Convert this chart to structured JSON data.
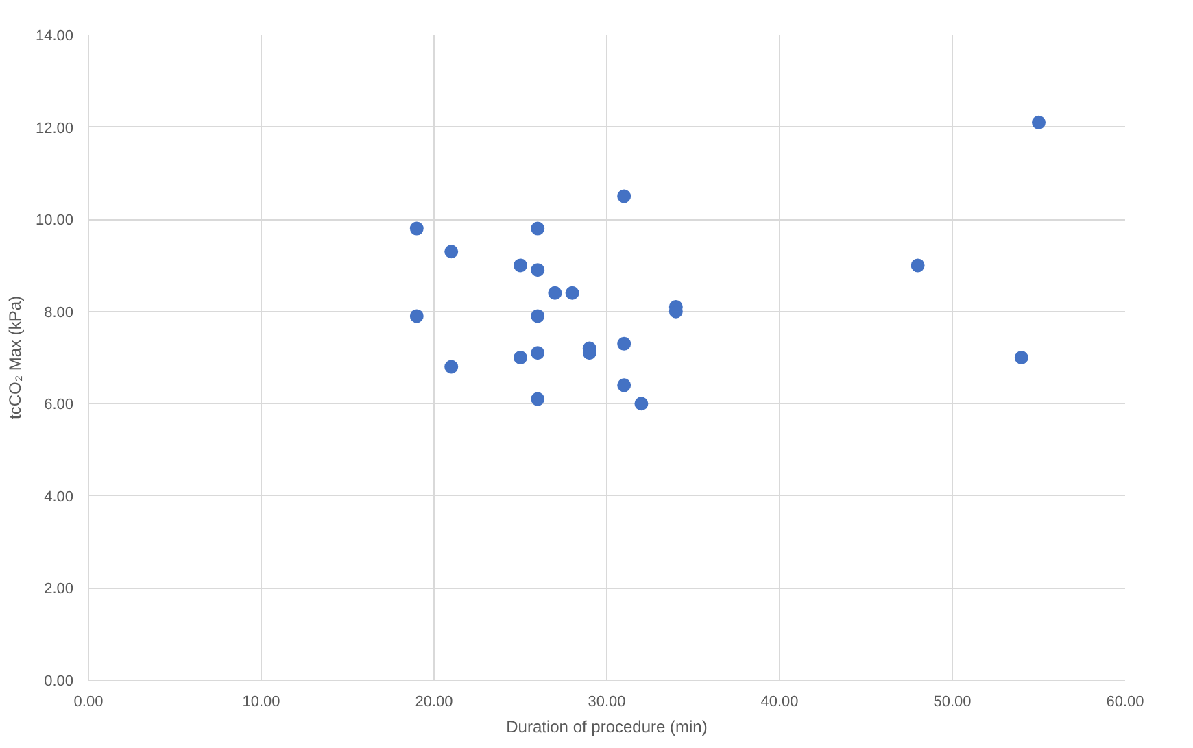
{
  "chart_data": {
    "type": "scatter",
    "xlabel": "Duration of procedure (min)",
    "ylabel": "tcCO₂ Max (kPa)",
    "x": [
      19,
      19,
      21,
      21,
      25,
      25,
      26,
      26,
      26,
      26,
      26,
      27,
      28,
      29,
      29,
      31,
      31,
      31,
      32,
      34,
      34,
      48,
      54,
      55
    ],
    "series": [
      {
        "color": "#4472c4",
        "values": [
          9.8,
          7.9,
          9.3,
          6.8,
          9.0,
          7.0,
          9.8,
          8.9,
          7.9,
          7.1,
          6.1,
          8.4,
          8.4,
          7.2,
          7.1,
          10.5,
          7.3,
          6.4,
          6.0,
          8.1,
          8.0,
          9.0,
          7.0,
          12.1
        ]
      }
    ],
    "xlim": [
      0,
      60
    ],
    "ylim": [
      0,
      14
    ],
    "xticks": [
      {
        "value": 0,
        "label": "0.00"
      },
      {
        "value": 10,
        "label": "10.00"
      },
      {
        "value": 20,
        "label": "20.00"
      },
      {
        "value": 30,
        "label": "30.00"
      },
      {
        "value": 40,
        "label": "40.00"
      },
      {
        "value": 50,
        "label": "50.00"
      },
      {
        "value": 60,
        "label": "60.00"
      }
    ],
    "yticks": [
      {
        "value": 0,
        "label": "0.00"
      },
      {
        "value": 2,
        "label": "2.00"
      },
      {
        "value": 4,
        "label": "4.00"
      },
      {
        "value": 6,
        "label": "6.00"
      },
      {
        "value": 8,
        "label": "8.00"
      },
      {
        "value": 10,
        "label": "10.00"
      },
      {
        "value": 12,
        "label": "12.00"
      },
      {
        "value": 14,
        "label": "14.00"
      }
    ],
    "grid": true,
    "marker": "circle"
  }
}
